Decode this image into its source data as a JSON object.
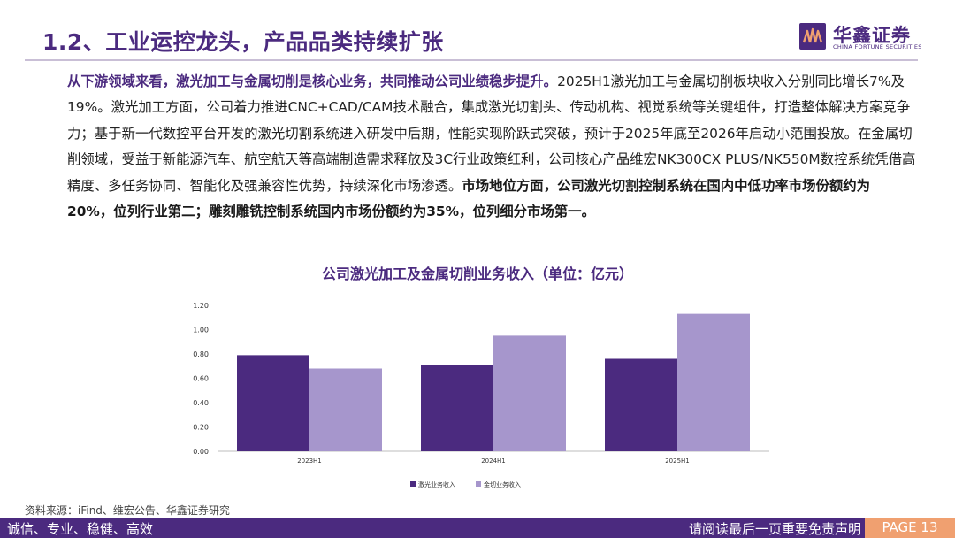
{
  "header": {
    "title": "1.2、工业运控龙头，产品品类持续扩张",
    "logo_name": "华鑫证券",
    "logo_sub": "CHINA FORTUNE SECURITIES"
  },
  "body": {
    "seg1": "从下游领域来看，激光加工与金属切削是核心业务，共同推动公司业绩稳步提升。",
    "seg2": "2025H1激光加工与金属切削板块收入分别同比增长7%及19%。激光加工方面，公司着力推进CNC+CAD/CAM技术融合，集成激光切割头、传动机构、视觉系统等关键组件，打造整体解决方案竞争力；基于新一代数控平台开发的激光切割系统进入研发中后期，性能实现阶跃式突破，预计于2025年底至2026年启动小范围投放。在金属切削领域，受益于新能源汽车、航空航天等高端制造需求释放及3C行业政策红利，公司核心产品维宏NK300CX PLUS/NK550M数控系统凭借高精度、多任务协同、智能化及强兼容性优势，持续深化市场渗透。",
    "seg3": "市场地位方面，公司激光切割控制系统在国内中低功率市场份额约为20%，位列行业第二；雕刻雕铣控制系统国内市场份额约为35%，位列细分市场第一。"
  },
  "chart_title": "公司激光加工及金属切削业务收入（单位：亿元）",
  "chart_data": {
    "type": "bar",
    "categories": [
      "2023H1",
      "2024H1",
      "2025H1"
    ],
    "series": [
      {
        "name": "激光业务收入",
        "values": [
          0.79,
          0.71,
          0.76
        ],
        "color": "#4b2a7f"
      },
      {
        "name": "金切业务收入",
        "values": [
          0.68,
          0.95,
          1.13
        ],
        "color": "#a696cc"
      }
    ],
    "ylim": [
      0,
      1.2
    ],
    "yticks": [
      "0.00",
      "0.20",
      "0.40",
      "0.60",
      "0.80",
      "1.00",
      "1.20"
    ],
    "grid": false,
    "legend_position": "bottom"
  },
  "source": "资料来源：iFind、维宏公告、华鑫证券研究",
  "footer": {
    "left": "诚信、专业、稳健、高效",
    "right": "请阅读最后一页重要免责声明",
    "page": "PAGE 13"
  }
}
